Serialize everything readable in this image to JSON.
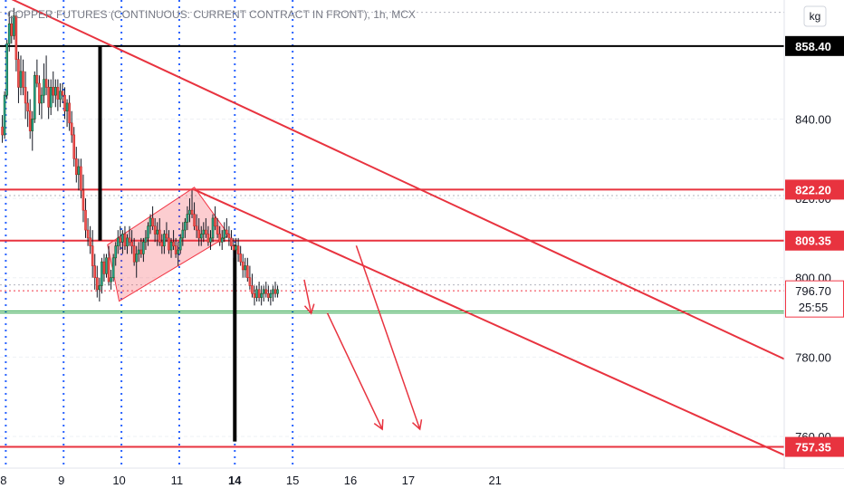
{
  "chart_data": {
    "type": "candlestick",
    "title": "COPPER FUTURES (CONTINUOUS: CURRENT CONTRACT IN FRONT), 1h, MCX",
    "unit_button": "kg",
    "ylim": [
      752,
      870
    ],
    "xlim": [
      7.94,
      21.5
    ],
    "y_ticks": [
      "840.00",
      "820.00",
      "800.00",
      "780.00",
      "760.00"
    ],
    "x_ticks": [
      {
        "label": "8",
        "x": 8
      },
      {
        "label": "9",
        "x": 9
      },
      {
        "label": "10",
        "x": 10
      },
      {
        "label": "11",
        "x": 11
      },
      {
        "label": "14",
        "x": 12,
        "bold": true
      },
      {
        "label": "15",
        "x": 13
      },
      {
        "label": "16",
        "x": 14
      },
      {
        "label": "17",
        "x": 15
      },
      {
        "label": "21",
        "x": 16.5
      }
    ],
    "level_tags": [
      {
        "label": "858.40",
        "value": 858.4,
        "color": "#000000",
        "text_color": "#ffffff"
      },
      {
        "label": "822.20",
        "value": 822.2,
        "color": "#e8333f",
        "text_color": "#ffffff"
      },
      {
        "label": "809.35",
        "value": 809.35,
        "color": "#e8333f",
        "text_color": "#ffffff"
      },
      {
        "label": "757.35",
        "value": 757.35,
        "color": "#e8333f",
        "text_color": "#ffffff"
      }
    ],
    "price_tag": {
      "label": "796.70",
      "countdown": "25:55",
      "value": 796.7,
      "color": "#ffffff",
      "text_color": "#f23645",
      "border": "#f23645"
    },
    "horizontal_lines": [
      {
        "value": 858.4,
        "color": "#000000",
        "width": 2
      },
      {
        "value": 822.2,
        "color": "#e8333f",
        "width": 2
      },
      {
        "value": 809.35,
        "color": "#e8333f",
        "width": 2
      },
      {
        "value": 757.35,
        "color": "#e8333f",
        "width": 2
      },
      {
        "value": 791.6,
        "color": "#1e9e3c",
        "width": 1
      },
      {
        "value": 791.1,
        "color": "#1e9e3c",
        "width": 1
      },
      {
        "value": 796.7,
        "color": "#f23645",
        "width": 1,
        "dotted": true
      },
      {
        "value": 798.2,
        "color": "#b2b5be",
        "width": 1,
        "dotted": true
      },
      {
        "value": 820.7,
        "color": "#b2b5be",
        "width": 1,
        "dotted": true
      },
      {
        "value": 866.9,
        "color": "#b2b5be",
        "width": 1,
        "dotted": true
      }
    ],
    "vertical_dotted_x": [
      8.04,
      9.04,
      10.04,
      11.04,
      12.0,
      13.0
    ],
    "vertical_bars": [
      {
        "x": 9.67,
        "y1": 858.4,
        "y2": 809.35
      },
      {
        "x": 12.0,
        "y1": 808.3,
        "y2": 758.7
      }
    ],
    "trend_lines": [
      {
        "x1": 8.1,
        "y1": 870.5,
        "x2": 21.5,
        "y2": 779.5
      },
      {
        "x1": 11.3,
        "y1": 822.2,
        "x2": 21.5,
        "y2": 755.3
      }
    ],
    "channel": {
      "points": [
        [
          9.8,
          808.3
        ],
        [
          11.3,
          822.8
        ],
        [
          11.9,
          810.7
        ],
        [
          10.0,
          794.1
        ]
      ],
      "fill": "rgba(242,54,69,0.25)",
      "stroke": "#f23645"
    },
    "arrows": [
      {
        "x1": 13.2,
        "y1": 799.5,
        "x2": 13.32,
        "y2": 791.0
      },
      {
        "x1": 13.6,
        "y1": 791.1,
        "x2": 14.55,
        "y2": 761.8
      },
      {
        "x1": 14.1,
        "y1": 808.1,
        "x2": 15.2,
        "y2": 761.8
      }
    ],
    "candles": [
      [
        7.98,
        838,
        841,
        834,
        836
      ],
      [
        8.02,
        836,
        847,
        835,
        846
      ],
      [
        8.06,
        846,
        860,
        845,
        859
      ],
      [
        8.1,
        859,
        867,
        857,
        864
      ],
      [
        8.14,
        864,
        866,
        859,
        861
      ],
      [
        8.18,
        861,
        868,
        860,
        866
      ],
      [
        8.22,
        866,
        867,
        852,
        855
      ],
      [
        8.26,
        855,
        857,
        844,
        848
      ],
      [
        8.3,
        848,
        856,
        846,
        852
      ],
      [
        8.34,
        852,
        855,
        846,
        848
      ],
      [
        8.38,
        848,
        852,
        840,
        844
      ],
      [
        8.42,
        844,
        847,
        838,
        842
      ],
      [
        8.46,
        842,
        845,
        835,
        837
      ],
      [
        8.5,
        837,
        842,
        832,
        840
      ],
      [
        8.54,
        840,
        852,
        839,
        851
      ],
      [
        8.58,
        851,
        855,
        848,
        849
      ],
      [
        8.62,
        849,
        851,
        841,
        844
      ],
      [
        8.66,
        844,
        848,
        840,
        846
      ],
      [
        8.7,
        846,
        854,
        844,
        850
      ],
      [
        8.74,
        850,
        856,
        846,
        848
      ],
      [
        8.78,
        848,
        850,
        840,
        843
      ],
      [
        8.82,
        843,
        850,
        841,
        848
      ],
      [
        8.86,
        848,
        852,
        844,
        846
      ],
      [
        8.9,
        846,
        850,
        843,
        848
      ],
      [
        8.94,
        848,
        850,
        842,
        845
      ],
      [
        8.98,
        845,
        849,
        843,
        847
      ],
      [
        9.02,
        847,
        849,
        844,
        846
      ],
      [
        9.06,
        846,
        848,
        840,
        842
      ],
      [
        9.1,
        842,
        845,
        838,
        844
      ],
      [
        9.14,
        844,
        846,
        837,
        839
      ],
      [
        9.18,
        839,
        842,
        834,
        836
      ],
      [
        9.22,
        836,
        838,
        828,
        830
      ],
      [
        9.26,
        830,
        833,
        824,
        826
      ],
      [
        9.3,
        826,
        830,
        822,
        828
      ],
      [
        9.34,
        828,
        830,
        820,
        822
      ],
      [
        9.38,
        822,
        826,
        814,
        817
      ],
      [
        9.42,
        817,
        820,
        810,
        812
      ],
      [
        9.46,
        812,
        815,
        808,
        810
      ],
      [
        9.5,
        810,
        813,
        806,
        808
      ],
      [
        9.54,
        808,
        812,
        800,
        803
      ],
      [
        9.58,
        803,
        806,
        797,
        800
      ],
      [
        9.62,
        800,
        803,
        795,
        797
      ],
      [
        9.66,
        797,
        800,
        794,
        798
      ],
      [
        9.7,
        798,
        805,
        796,
        804
      ],
      [
        9.74,
        804,
        806,
        799,
        801
      ],
      [
        9.78,
        801,
        806,
        800,
        805
      ],
      [
        9.82,
        805,
        808,
        798,
        799
      ],
      [
        9.86,
        799,
        802,
        797,
        800
      ],
      [
        9.9,
        800,
        806,
        799,
        805
      ],
      [
        9.94,
        805,
        809,
        803,
        808
      ],
      [
        9.98,
        808,
        812,
        806,
        810
      ],
      [
        10.02,
        810,
        813,
        807,
        809
      ],
      [
        10.06,
        809,
        812,
        806,
        811
      ],
      [
        10.1,
        811,
        813,
        807,
        808
      ],
      [
        10.14,
        808,
        811,
        806,
        810
      ],
      [
        10.18,
        810,
        813,
        808,
        809
      ],
      [
        10.22,
        809,
        812,
        806,
        808
      ],
      [
        10.26,
        808,
        810,
        803,
        804
      ],
      [
        10.3,
        804,
        808,
        800,
        806
      ],
      [
        10.34,
        806,
        809,
        804,
        807
      ],
      [
        10.38,
        807,
        810,
        805,
        806
      ],
      [
        10.42,
        806,
        810,
        804,
        809
      ],
      [
        10.46,
        809,
        812,
        807,
        810
      ],
      [
        10.5,
        810,
        814,
        808,
        813
      ],
      [
        10.54,
        813,
        816,
        811,
        815
      ],
      [
        10.58,
        815,
        818,
        812,
        813
      ],
      [
        10.62,
        813,
        815,
        809,
        811
      ],
      [
        10.66,
        811,
        814,
        808,
        812
      ],
      [
        10.7,
        812,
        815,
        808,
        809
      ],
      [
        10.74,
        809,
        811,
        806,
        808
      ],
      [
        10.78,
        808,
        812,
        806,
        811
      ],
      [
        10.82,
        811,
        814,
        809,
        810
      ],
      [
        10.86,
        810,
        812,
        806,
        807
      ],
      [
        10.9,
        807,
        810,
        805,
        809
      ],
      [
        10.94,
        809,
        812,
        807,
        808
      ],
      [
        10.98,
        808,
        810,
        805,
        806
      ],
      [
        11.02,
        806,
        809,
        803,
        807
      ],
      [
        11.06,
        807,
        811,
        806,
        810
      ],
      [
        11.1,
        810,
        814,
        808,
        812
      ],
      [
        11.14,
        812,
        815,
        810,
        814
      ],
      [
        11.18,
        814,
        818,
        812,
        816
      ],
      [
        11.22,
        816,
        820,
        814,
        817
      ],
      [
        11.26,
        817,
        822,
        815,
        816
      ],
      [
        11.3,
        816,
        819,
        812,
        813
      ],
      [
        11.34,
        813,
        816,
        810,
        812
      ],
      [
        11.38,
        812,
        815,
        808,
        810
      ],
      [
        11.42,
        810,
        813,
        808,
        811
      ],
      [
        11.46,
        811,
        814,
        809,
        812
      ],
      [
        11.5,
        812,
        815,
        810,
        811
      ],
      [
        11.54,
        811,
        813,
        808,
        809
      ],
      [
        11.58,
        809,
        812,
        807,
        810
      ],
      [
        11.62,
        810,
        816,
        809,
        815
      ],
      [
        11.66,
        815,
        818,
        812,
        813
      ],
      [
        11.7,
        813,
        815,
        810,
        811
      ],
      [
        11.74,
        811,
        813,
        808,
        809
      ],
      [
        11.78,
        809,
        812,
        807,
        810
      ],
      [
        11.82,
        810,
        814,
        809,
        812
      ],
      [
        11.86,
        812,
        815,
        810,
        811
      ],
      [
        11.9,
        811,
        813,
        808,
        810
      ],
      [
        11.94,
        810,
        812,
        807,
        808
      ],
      [
        11.98,
        808,
        810,
        805,
        807
      ],
      [
        12.02,
        807,
        810,
        805,
        808
      ],
      [
        12.06,
        808,
        810,
        804,
        806
      ],
      [
        12.1,
        806,
        808,
        803,
        804
      ],
      [
        12.14,
        804,
        806,
        800,
        802
      ],
      [
        12.18,
        802,
        805,
        800,
        803
      ],
      [
        12.22,
        803,
        805,
        799,
        800
      ],
      [
        12.26,
        800,
        803,
        797,
        798
      ],
      [
        12.3,
        798,
        801,
        795,
        796
      ],
      [
        12.34,
        796,
        798,
        793,
        795
      ],
      [
        12.38,
        795,
        798,
        794,
        797
      ],
      [
        12.42,
        797,
        799,
        794,
        795
      ],
      [
        12.46,
        795,
        798,
        793,
        796
      ],
      [
        12.5,
        796,
        798,
        794,
        797
      ],
      [
        12.54,
        797,
        799,
        795,
        796
      ],
      [
        12.58,
        796,
        798,
        794,
        795
      ],
      [
        12.62,
        795,
        797,
        793,
        796
      ],
      [
        12.66,
        796,
        798,
        794,
        797
      ],
      [
        12.7,
        797,
        799,
        795,
        796
      ],
      [
        12.74,
        796,
        798,
        795,
        797
      ]
    ]
  }
}
